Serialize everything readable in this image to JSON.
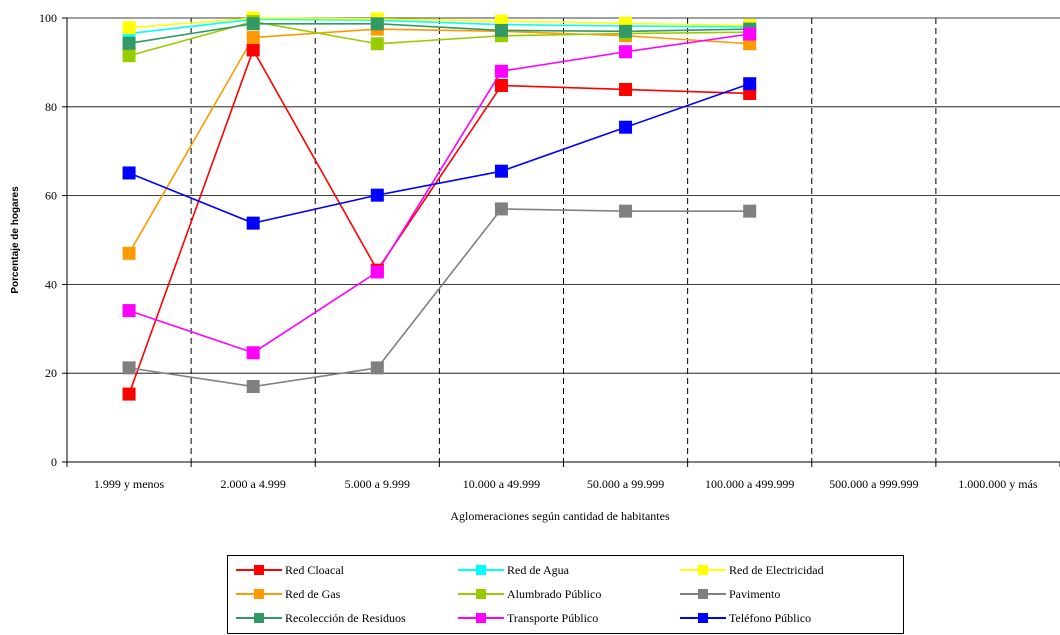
{
  "chart_data": {
    "type": "line",
    "title": "",
    "xlabel": "Aglomeraciones según cantidad de habitantes",
    "ylabel": "Porcentaje de hogares",
    "ylim": [
      0,
      100
    ],
    "yticks": [
      "0",
      "20",
      "40",
      "60",
      "80",
      "100"
    ],
    "grid": "horizontal",
    "legend_position": "bottom",
    "categories": [
      "1.999 y menos",
      "2.000 a 4.999",
      "5.000 a 9.999",
      "10.000 a 49.999",
      "50.000 a 99.999",
      "100.000 a 499.999",
      "500.000 a 999.999",
      "1.000.000 y más"
    ],
    "series": [
      {
        "name": "Red Cloacal",
        "color": "#ff0000",
        "values": [
          15.3,
          92.8,
          43.2,
          84.8,
          83.9,
          83.0,
          null,
          null
        ]
      },
      {
        "name": "Red de Agua",
        "color": "#00ffff",
        "values": [
          96.5,
          99.7,
          99.5,
          98.5,
          98.2,
          98.0,
          null,
          null
        ]
      },
      {
        "name": "Red de Electricidad",
        "color": "#ffff00",
        "values": [
          97.8,
          100.0,
          99.8,
          99.3,
          98.8,
          98.3,
          null,
          null
        ]
      },
      {
        "name": "Red de Gas",
        "color": "#ff9900",
        "values": [
          47.0,
          95.6,
          97.5,
          97.0,
          96.0,
          94.2,
          null,
          null
        ]
      },
      {
        "name": "Alumbrado Público",
        "color": "#99cc00",
        "values": [
          91.5,
          99.2,
          94.2,
          96.0,
          96.5,
          96.8,
          null,
          null
        ]
      },
      {
        "name": "Pavimento",
        "color": "#808080",
        "values": [
          21.2,
          17.0,
          21.2,
          57.0,
          56.5,
          56.5,
          null,
          null
        ]
      },
      {
        "name": "Recolección de Residuos",
        "color": "#339966",
        "values": [
          94.3,
          98.7,
          98.7,
          97.2,
          97.0,
          97.5,
          null,
          null
        ]
      },
      {
        "name": "Transporte Público",
        "color": "#ff00ff",
        "values": [
          34.1,
          24.6,
          42.8,
          88.0,
          92.4,
          96.4,
          null,
          null
        ]
      },
      {
        "name": "Teléfono Público",
        "color": "#0000ff",
        "values": [
          65.1,
          53.8,
          60.1,
          65.5,
          75.4,
          85.2,
          null,
          null
        ]
      }
    ]
  }
}
